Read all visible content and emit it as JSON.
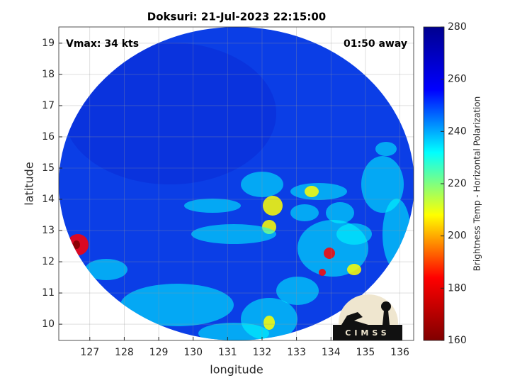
{
  "chart_data": {
    "type": "heatmap-map",
    "title": "Doksuri: 21-Jul-2023 22:15:00",
    "annotations": [
      "Vmax: 34 kts",
      "01:50 away"
    ],
    "xlabel": "longitude",
    "ylabel": "latitude",
    "xlim": [
      126.1,
      136.4
    ],
    "xticks": [
      127,
      128,
      129,
      130,
      131,
      132,
      133,
      134,
      135,
      136
    ],
    "ylim": [
      9.48,
      19.52
    ],
    "yticks": [
      10,
      11,
      12,
      13,
      14,
      15,
      16,
      17,
      18,
      19
    ],
    "grid": true,
    "colorbar": {
      "label": "Brightness Temp - Horizontal Polarization",
      "lim": [
        160,
        280
      ],
      "ticks": [
        160,
        180,
        200,
        220,
        240,
        260,
        280
      ]
    },
    "colormap": [
      "#800000",
      "#ff0000",
      "#ffff00",
      "#00ffff",
      "#0000ff",
      "#00008f"
    ],
    "logo": "CIMSS"
  }
}
